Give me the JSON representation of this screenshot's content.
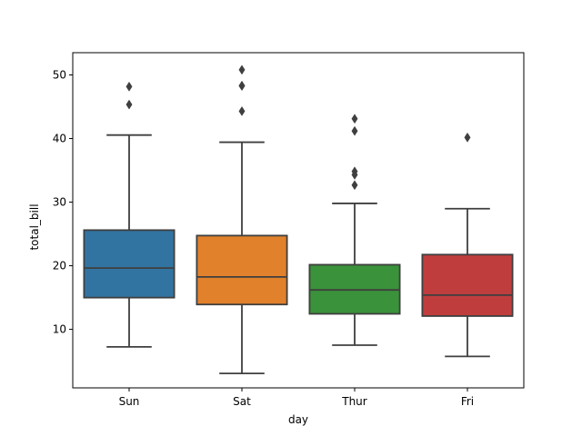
{
  "chart_data": {
    "type": "box",
    "title": "",
    "xlabel": "day",
    "ylabel": "total_bill",
    "categories": [
      "Sun",
      "Sat",
      "Thur",
      "Fri"
    ],
    "ylim": [
      0.8,
      53.5
    ],
    "yticks": [
      10,
      20,
      30,
      40,
      50
    ],
    "grid": false,
    "boxes": [
      {
        "category": "Sun",
        "color": "#3274a1",
        "whisker_low": 7.25,
        "q1": 14.99,
        "median": 19.63,
        "q3": 25.6,
        "whisker_high": 40.55,
        "outliers": [
          45.35,
          48.17
        ]
      },
      {
        "category": "Sat",
        "color": "#e1812c",
        "whisker_low": 3.07,
        "q1": 13.91,
        "median": 18.24,
        "q3": 24.74,
        "whisker_high": 39.42,
        "outliers": [
          44.3,
          48.27,
          48.33,
          50.81
        ]
      },
      {
        "category": "Thur",
        "color": "#3a923a",
        "whisker_low": 7.51,
        "q1": 12.44,
        "median": 16.2,
        "q3": 20.16,
        "whisker_high": 29.8,
        "outliers": [
          32.68,
          34.3,
          34.83,
          41.19,
          43.11
        ]
      },
      {
        "category": "Fri",
        "color": "#c03d3e",
        "whisker_low": 5.75,
        "q1": 12.09,
        "median": 15.38,
        "q3": 21.75,
        "whisker_high": 28.97,
        "outliers": [
          40.17
        ]
      }
    ]
  }
}
